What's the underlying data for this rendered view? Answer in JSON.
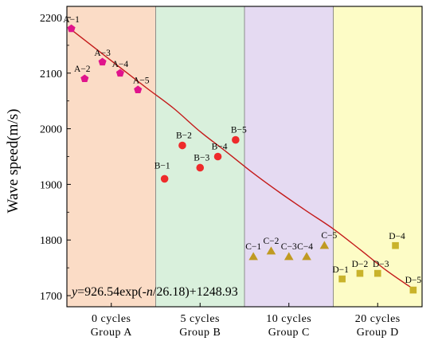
{
  "chart_data": {
    "type": "scatter",
    "title": "",
    "xlabel": "",
    "ylabel": "Wave speed(m/s)",
    "ylim": [
      1680,
      2220
    ],
    "yticks": [
      1700,
      1800,
      1900,
      2000,
      2100,
      2200
    ],
    "grid": false,
    "legend": "none",
    "groups": [
      {
        "line1": "0 cycles",
        "line2": "Group A",
        "color": "#fbdcc6"
      },
      {
        "line1": "5 cycles",
        "line2": "Group B",
        "color": "#d9f0dc"
      },
      {
        "line1": "10 cycles",
        "line2": "Group C",
        "color": "#e5daf2"
      },
      {
        "line1": "20 cycles",
        "line2": "Group D",
        "color": "#fdfcc6"
      }
    ],
    "series": [
      {
        "group": 0,
        "marker": "pentagon",
        "color": "#e0148c",
        "points": [
          {
            "label": "A−1",
            "x": 0.05,
            "y": 2180
          },
          {
            "label": "A−2",
            "x": 0.2,
            "y": 2090
          },
          {
            "label": "A−3",
            "x": 0.4,
            "y": 2120
          },
          {
            "label": "A−4",
            "x": 0.6,
            "y": 2100
          },
          {
            "label": "A−5",
            "x": 0.8,
            "y": 2070
          }
        ]
      },
      {
        "group": 1,
        "marker": "circle",
        "color": "#ee2b2b",
        "points": [
          {
            "label": "B−1",
            "x": 1.1,
            "y": 1910
          },
          {
            "label": "B−2",
            "x": 1.3,
            "y": 1970
          },
          {
            "label": "B−3",
            "x": 1.5,
            "y": 1930
          },
          {
            "label": "B−4",
            "x": 1.7,
            "y": 1950
          },
          {
            "label": "B−5",
            "x": 1.9,
            "y": 1980
          }
        ]
      },
      {
        "group": 2,
        "marker": "triangle",
        "color": "#c09a22",
        "points": [
          {
            "label": "C−1",
            "x": 2.1,
            "y": 1770
          },
          {
            "label": "C−2",
            "x": 2.3,
            "y": 1780
          },
          {
            "label": "C−3",
            "x": 2.5,
            "y": 1770
          },
          {
            "label": "C−4",
            "x": 2.7,
            "y": 1770
          },
          {
            "label": "C−5",
            "x": 2.9,
            "y": 1790
          }
        ]
      },
      {
        "group": 3,
        "marker": "square",
        "color": "#c9b32b",
        "points": [
          {
            "label": "D−1",
            "x": 3.1,
            "y": 1730
          },
          {
            "label": "D−2",
            "x": 3.3,
            "y": 1740
          },
          {
            "label": "D−3",
            "x": 3.5,
            "y": 1740
          },
          {
            "label": "D−4",
            "x": 3.7,
            "y": 1790
          },
          {
            "label": "D−5",
            "x": 3.9,
            "y": 1710
          }
        ]
      }
    ],
    "fit": {
      "equation": "y=926.54exp(-n/26.18)+1248.93",
      "equation_parts": [
        "y",
        "=926.54exp(-",
        "n",
        "/26.18)+1248.93"
      ],
      "color": "#c41a1a",
      "points": [
        [
          0.05,
          2178
        ],
        [
          0.3,
          2147
        ],
        [
          0.6,
          2110
        ],
        [
          0.9,
          2073
        ],
        [
          1.2,
          2037
        ],
        [
          1.5,
          1995
        ],
        [
          1.8,
          1958
        ],
        [
          2.1,
          1920
        ],
        [
          2.4,
          1885
        ],
        [
          2.7,
          1852
        ],
        [
          3.0,
          1820
        ],
        [
          3.3,
          1783
        ],
        [
          3.6,
          1745
        ],
        [
          3.9,
          1712
        ]
      ]
    }
  }
}
